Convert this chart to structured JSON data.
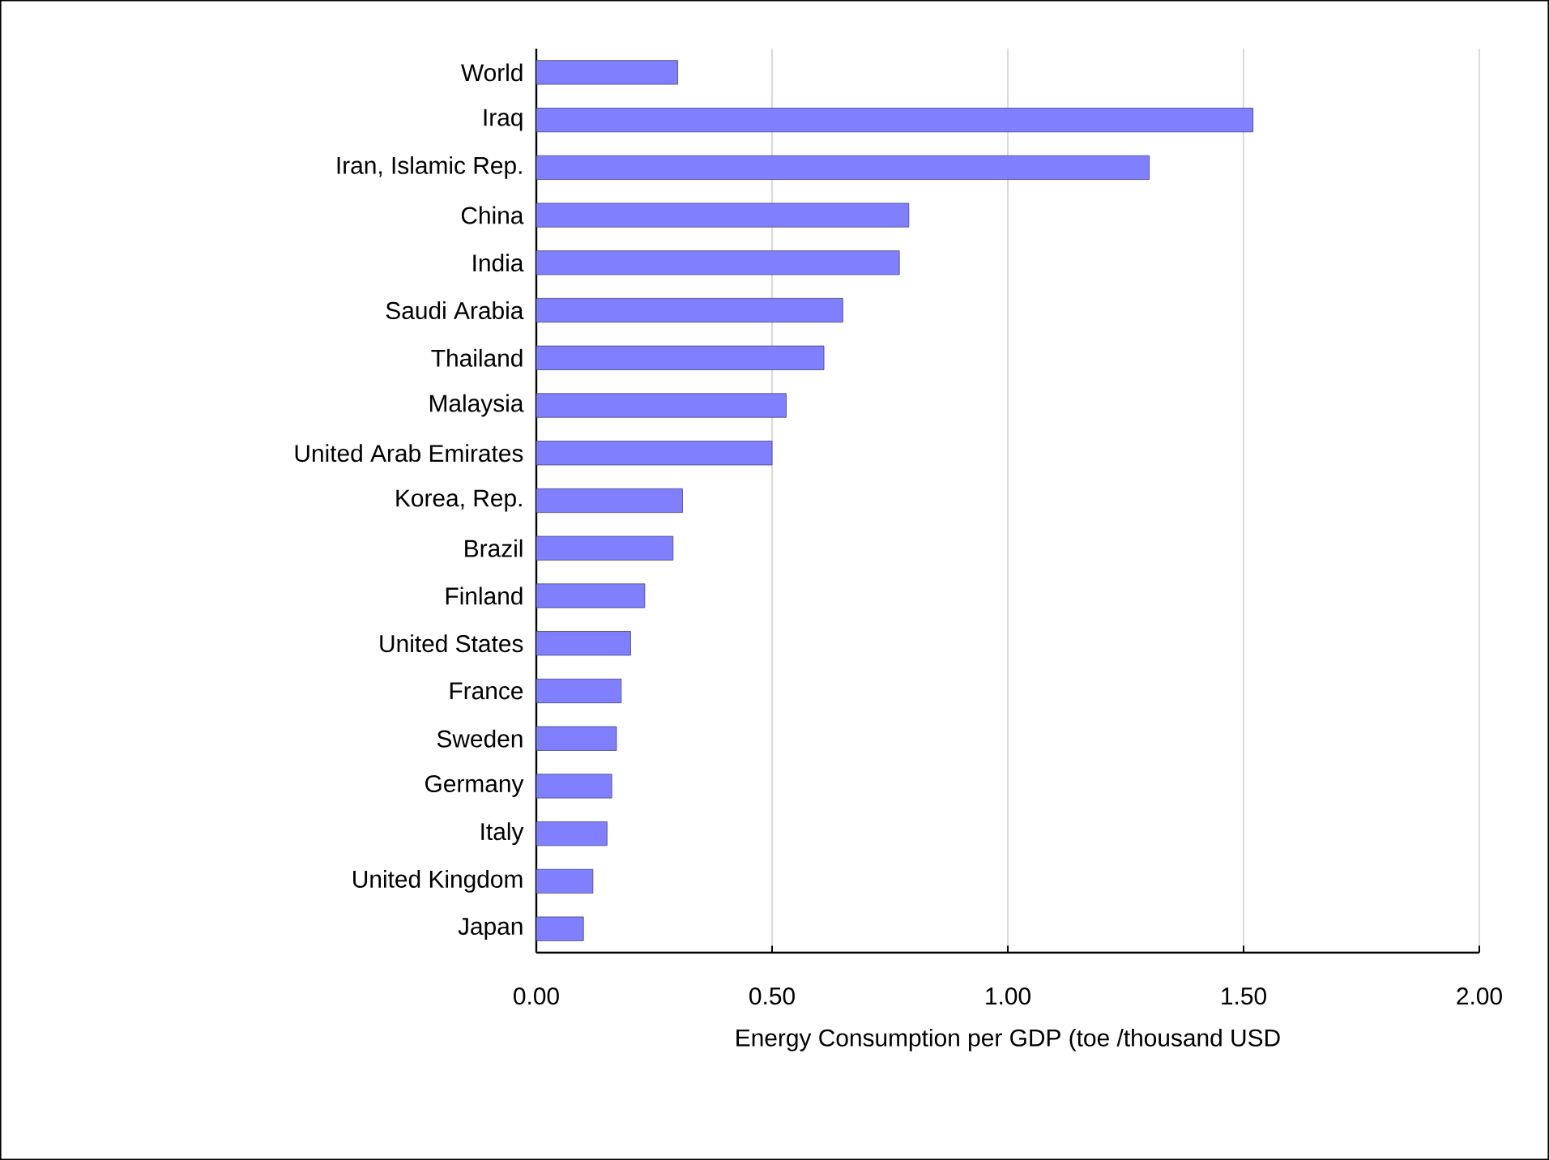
{
  "chart_data": {
    "type": "bar",
    "orientation": "horizontal",
    "categories": [
      "World",
      "Iraq",
      "Iran, Islamic Rep.",
      "China",
      "India",
      "Saudi Arabia",
      "Thailand",
      "Malaysia",
      "United Arab Emirates",
      "Korea, Rep.",
      "Brazil",
      "Finland",
      "United States",
      "France",
      "Sweden",
      "Germany",
      "Italy",
      "United Kingdom",
      "Japan"
    ],
    "values": [
      0.3,
      1.52,
      1.3,
      0.79,
      0.77,
      0.65,
      0.61,
      0.53,
      0.5,
      0.31,
      0.29,
      0.23,
      0.2,
      0.18,
      0.17,
      0.16,
      0.15,
      0.12,
      0.1
    ],
    "color": "#8080ff",
    "xlim": [
      0,
      2
    ],
    "xticks": [
      {
        "value": 0,
        "label": "0.00"
      },
      {
        "value": 0.5,
        "label": "0.50"
      },
      {
        "value": 1,
        "label": "1.00"
      },
      {
        "value": 1.5,
        "label": "1.50"
      },
      {
        "value": 2,
        "label": "2.00"
      }
    ],
    "xlabel": "Energy Consumption per GDP (toe /thousand USD",
    "grid": "x"
  }
}
